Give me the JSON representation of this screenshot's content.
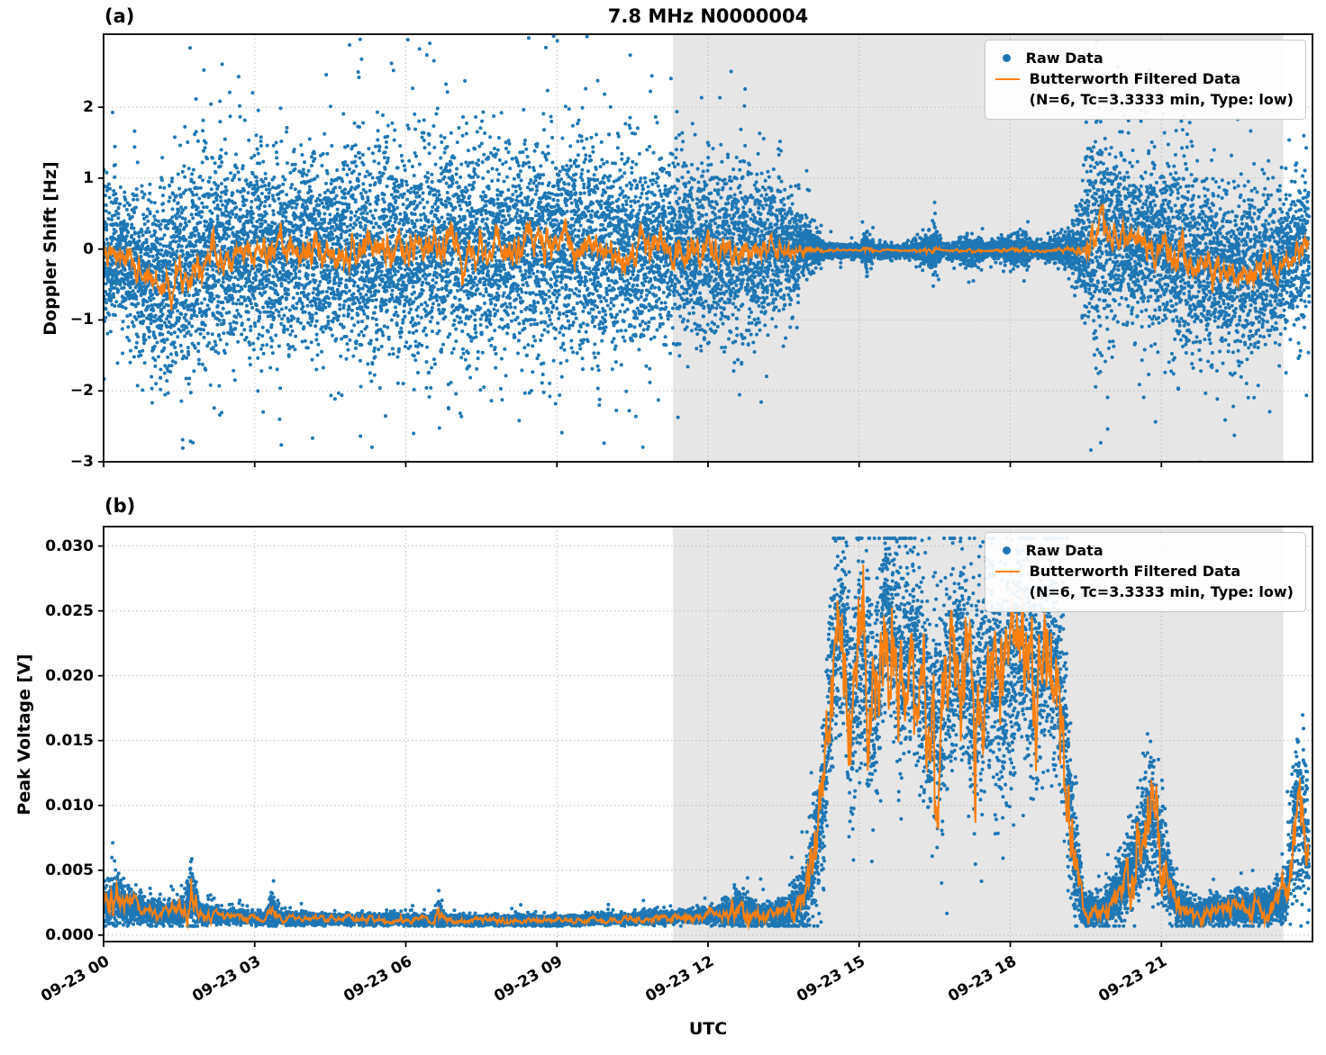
{
  "figure": {
    "title": "7.8 MHz N0000004",
    "xlabel": "UTC",
    "panel_a_label": "(a)",
    "panel_b_label": "(b)",
    "colors": {
      "raw": "#1f77b4",
      "filtered": "#ff7f0e",
      "shade": "#e6e6e6",
      "grid": "#aaaaaa",
      "spine": "#000000"
    },
    "legend": {
      "raw_label": "Raw Data",
      "filtered_label": "Butterworth Filtered Data",
      "filtered_sublabel": "(N=6, Tc=3.3333 min, Type: low)"
    }
  },
  "chart_data": [
    {
      "type": "scatter",
      "panel": "a",
      "title": "7.8 MHz N0000004",
      "xlabel": "UTC",
      "ylabel": "Doppler Shift [Hz]",
      "ylim": [
        -3.0,
        3.03
      ],
      "xlim_hours": [
        0,
        24
      ],
      "grid": "dotted",
      "legend_position": "upper right",
      "shaded_region_hours": [
        11.3,
        23.42
      ],
      "yticks": [
        {
          "v": 2,
          "label": "2"
        },
        {
          "v": 1,
          "label": "1"
        },
        {
          "v": 0,
          "label": "0"
        },
        {
          "v": -1,
          "label": "−1"
        },
        {
          "v": -2,
          "label": "−2"
        },
        {
          "v": -3,
          "label": "−3"
        }
      ],
      "xticks": [
        {
          "h": 0,
          "label": "09-23 00"
        },
        {
          "h": 3,
          "label": "09-23 03"
        },
        {
          "h": 6,
          "label": "09-23 06"
        },
        {
          "h": 9,
          "label": "09-23 09"
        },
        {
          "h": 12,
          "label": "09-23 12"
        },
        {
          "h": 15,
          "label": "09-23 15"
        },
        {
          "h": 18,
          "label": "09-23 18"
        },
        {
          "h": 21,
          "label": "09-23 21"
        }
      ],
      "envelope_format": [
        "hour",
        "center",
        "spread"
      ],
      "series": [
        {
          "name": "Raw Data",
          "kind": "scatter",
          "color": "#1f77b4",
          "envelope": [
            [
              0,
              -0.1,
              0.5
            ],
            [
              0.4,
              -0.15,
              0.45
            ],
            [
              0.8,
              -0.35,
              0.55
            ],
            [
              1.2,
              -0.5,
              0.65
            ],
            [
              1.6,
              -0.35,
              0.7
            ],
            [
              2.0,
              -0.05,
              0.72
            ],
            [
              2.5,
              -0.05,
              0.6
            ],
            [
              3,
              -0.05,
              0.62
            ],
            [
              4,
              -0.05,
              0.66
            ],
            [
              5,
              0,
              0.7
            ],
            [
              6,
              0,
              0.7
            ],
            [
              7,
              0.03,
              0.7
            ],
            [
              8,
              0,
              0.7
            ],
            [
              9,
              0.03,
              0.68
            ],
            [
              10,
              0,
              0.66
            ],
            [
              11,
              0,
              0.62
            ],
            [
              12,
              0,
              0.6
            ],
            [
              13,
              0,
              0.56
            ],
            [
              13.6,
              0,
              0.4
            ],
            [
              14.0,
              0,
              0.18
            ],
            [
              14.3,
              -0.02,
              0.05
            ],
            [
              15.0,
              -0.02,
              0.04
            ],
            [
              15.15,
              -0.02,
              0.16
            ],
            [
              15.3,
              -0.02,
              0.04
            ],
            [
              16.0,
              -0.02,
              0.04
            ],
            [
              16.5,
              0,
              0.15
            ],
            [
              16.65,
              -0.02,
              0.04
            ],
            [
              17.3,
              -0.02,
              0.1
            ],
            [
              17.5,
              -0.02,
              0.04
            ],
            [
              18.3,
              0,
              0.12
            ],
            [
              18.45,
              -0.02,
              0.04
            ],
            [
              19.0,
              -0.02,
              0.08
            ],
            [
              19.3,
              0,
              0.2
            ],
            [
              19.6,
              0.1,
              0.7
            ],
            [
              19.8,
              0.15,
              0.8
            ],
            [
              20.1,
              0.2,
              0.55
            ],
            [
              20.6,
              0.1,
              0.5
            ],
            [
              21.0,
              0,
              0.55
            ],
            [
              21.35,
              -0.1,
              0.85
            ],
            [
              21.7,
              -0.2,
              0.6
            ],
            [
              22.2,
              -0.35,
              0.55
            ],
            [
              22.7,
              -0.4,
              0.55
            ],
            [
              23.2,
              -0.3,
              0.55
            ],
            [
              23.6,
              -0.15,
              0.5
            ],
            [
              23.93,
              0.05,
              0.5
            ]
          ]
        },
        {
          "name": "Butterworth Filtered Data (N=6, Tc=3.3333 min, Type: low)",
          "kind": "line",
          "color": "#ff7f0e",
          "wiggle": 0.55
        }
      ]
    },
    {
      "type": "scatter",
      "panel": "b",
      "xlabel": "UTC",
      "ylabel": "Peak Voltage [V]",
      "ylim": [
        -0.0005,
        0.0315
      ],
      "xlim_hours": [
        0,
        24
      ],
      "grid": "dotted",
      "legend_position": "upper right",
      "shaded_region_hours": [
        11.3,
        23.42
      ],
      "yticks": [
        {
          "v": 0.0,
          "label": "0.000"
        },
        {
          "v": 0.005,
          "label": "0.005"
        },
        {
          "v": 0.01,
          "label": "0.010"
        },
        {
          "v": 0.015,
          "label": "0.015"
        },
        {
          "v": 0.02,
          "label": "0.020"
        },
        {
          "v": 0.025,
          "label": "0.025"
        },
        {
          "v": 0.03,
          "label": "0.030"
        }
      ],
      "xticks": [
        {
          "h": 0,
          "label": "09-23 00"
        },
        {
          "h": 3,
          "label": "09-23 03"
        },
        {
          "h": 6,
          "label": "09-23 06"
        },
        {
          "h": 9,
          "label": "09-23 09"
        },
        {
          "h": 12,
          "label": "09-23 12"
        },
        {
          "h": 15,
          "label": "09-23 15"
        },
        {
          "h": 18,
          "label": "09-23 18"
        },
        {
          "h": 21,
          "label": "09-23 21"
        }
      ],
      "envelope_format": [
        "hour",
        "center",
        "spread"
      ],
      "series": [
        {
          "name": "Raw Data",
          "kind": "scatter",
          "color": "#1f77b4",
          "envelope": [
            [
              0,
              0.0022,
              0.0008
            ],
            [
              0.25,
              0.0028,
              0.0013
            ],
            [
              0.5,
              0.0022,
              0.0008
            ],
            [
              0.8,
              0.0018,
              0.0006
            ],
            [
              1.2,
              0.0017,
              0.0005
            ],
            [
              1.6,
              0.0018,
              0.0007
            ],
            [
              1.75,
              0.003,
              0.002
            ],
            [
              1.9,
              0.0016,
              0.0005
            ],
            [
              2.5,
              0.0014,
              0.0003
            ],
            [
              3.2,
              0.0013,
              0.0003
            ],
            [
              3.35,
              0.0018,
              0.0009
            ],
            [
              3.5,
              0.0013,
              0.0003
            ],
            [
              4.5,
              0.0012,
              0.00025
            ],
            [
              5.5,
              0.0012,
              0.00025
            ],
            [
              6.5,
              0.0011,
              0.00025
            ],
            [
              6.65,
              0.0014,
              0.0008
            ],
            [
              6.8,
              0.0011,
              0.00025
            ],
            [
              8,
              0.0011,
              0.00025
            ],
            [
              9,
              0.0011,
              0.00025
            ],
            [
              10,
              0.0012,
              0.00025
            ],
            [
              11,
              0.0013,
              0.0003
            ],
            [
              11.6,
              0.0014,
              0.0003
            ],
            [
              12.2,
              0.0015,
              0.0004
            ],
            [
              12.6,
              0.0019,
              0.0009
            ],
            [
              12.9,
              0.0016,
              0.0006
            ],
            [
              13.3,
              0.0015,
              0.0005
            ],
            [
              13.7,
              0.0019,
              0.0009
            ],
            [
              14.0,
              0.004,
              0.002
            ],
            [
              14.25,
              0.009,
              0.004
            ],
            [
              14.5,
              0.022,
              0.005
            ],
            [
              14.65,
              0.025,
              0.004
            ],
            [
              14.85,
              0.016,
              0.006
            ],
            [
              15.05,
              0.022,
              0.006
            ],
            [
              15.3,
              0.017,
              0.006
            ],
            [
              15.55,
              0.025,
              0.004
            ],
            [
              15.8,
              0.02,
              0.006
            ],
            [
              16.1,
              0.022,
              0.005
            ],
            [
              16.4,
              0.016,
              0.005
            ],
            [
              16.7,
              0.018,
              0.006
            ],
            [
              17.0,
              0.022,
              0.005
            ],
            [
              17.3,
              0.018,
              0.006
            ],
            [
              17.6,
              0.021,
              0.005
            ],
            [
              17.9,
              0.019,
              0.006
            ],
            [
              18.2,
              0.023,
              0.005
            ],
            [
              18.5,
              0.02,
              0.006
            ],
            [
              18.8,
              0.022,
              0.005
            ],
            [
              19.05,
              0.016,
              0.005
            ],
            [
              19.25,
              0.007,
              0.004
            ],
            [
              19.45,
              0.002,
              0.0008
            ],
            [
              19.8,
              0.0018,
              0.0007
            ],
            [
              20.1,
              0.003,
              0.0015
            ],
            [
              20.5,
              0.006,
              0.0025
            ],
            [
              20.8,
              0.009,
              0.003
            ],
            [
              21.0,
              0.006,
              0.0025
            ],
            [
              21.3,
              0.0025,
              0.001
            ],
            [
              21.6,
              0.0016,
              0.0006
            ],
            [
              22.1,
              0.0019,
              0.0008
            ],
            [
              22.6,
              0.002,
              0.0008
            ],
            [
              23.1,
              0.0022,
              0.0009
            ],
            [
              23.45,
              0.0028,
              0.0012
            ],
            [
              23.7,
              0.01,
              0.004
            ],
            [
              23.85,
              0.008,
              0.0035
            ],
            [
              23.93,
              0.006,
              0.003
            ]
          ]
        },
        {
          "name": "Butterworth Filtered Data (N=6, Tc=3.3333 min, Type: low)",
          "kind": "line",
          "color": "#ff7f0e",
          "wiggle": 1.5
        }
      ]
    }
  ]
}
